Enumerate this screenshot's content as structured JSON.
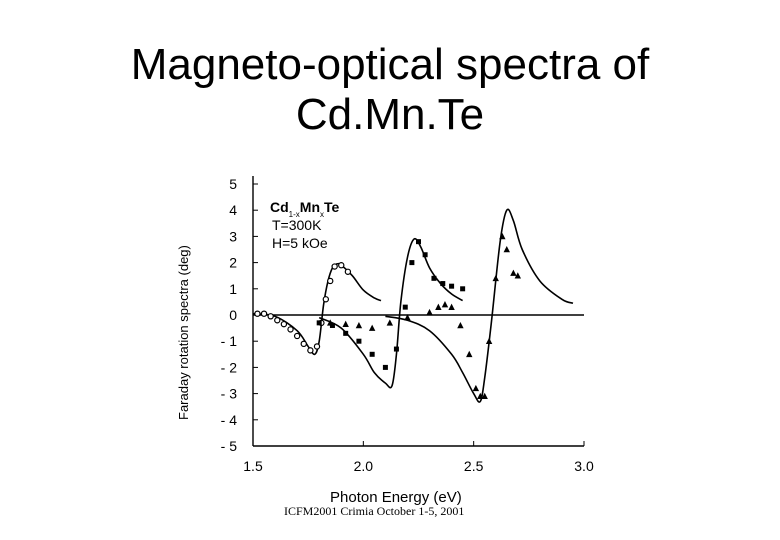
{
  "header": {
    "title_line1": "Magneto-optical spectra of",
    "title_line2": "Cd.Mn.Te"
  },
  "footer": "ICFM2001 Crimia October 1-5, 2001",
  "chart_data": {
    "type": "line",
    "title": "Magneto-optical spectra of Cd.Mn.Te",
    "xlabel": "Photon Energy (eV)",
    "ylabel": "Faraday rotation spectra (deg)",
    "xlim": [
      1.5,
      3.0
    ],
    "ylim": [
      -5,
      5
    ],
    "x_ticks": [
      "1.5",
      "2.0",
      "2.5",
      "3.0"
    ],
    "y_ticks": [
      "5",
      "4",
      "3",
      "2",
      "1",
      "0",
      "- 1",
      "- 2",
      "- 3",
      "- 4",
      "- 5"
    ],
    "annotation": {
      "material_main": "Cd",
      "sub1": "1-x",
      "mid": "Mn",
      "sub2": "x",
      "end": "Te",
      "temperature": "T=300K",
      "field": "H=5 kOe"
    },
    "series": [
      {
        "name": "",
        "kind": "line",
        "x": [
          1.5,
          1.6,
          1.7,
          1.75,
          1.78,
          1.8,
          1.82,
          1.84,
          1.86,
          1.88,
          1.9,
          1.95,
          2.0,
          2.05,
          2.08
        ],
        "y": [
          0.05,
          -0.05,
          -0.6,
          -1.2,
          -1.5,
          -1.0,
          0.4,
          1.3,
          1.8,
          1.95,
          1.9,
          1.5,
          0.95,
          0.65,
          0.55
        ]
      },
      {
        "name": "",
        "kind": "line",
        "x": [
          1.8,
          1.9,
          2.0,
          2.05,
          2.1,
          2.13,
          2.15,
          2.17,
          2.2,
          2.23,
          2.26,
          2.3,
          2.35,
          2.4,
          2.45
        ],
        "y": [
          -0.1,
          -0.5,
          -1.5,
          -2.2,
          -2.6,
          -2.7,
          -1.5,
          0.5,
          2.2,
          2.9,
          2.6,
          1.8,
          1.2,
          0.8,
          0.55
        ]
      },
      {
        "name": "",
        "kind": "line",
        "x": [
          2.1,
          2.2,
          2.3,
          2.4,
          2.45,
          2.5,
          2.53,
          2.55,
          2.58,
          2.62,
          2.65,
          2.68,
          2.72,
          2.8,
          2.9,
          2.95
        ],
        "y": [
          -0.05,
          -0.2,
          -0.6,
          -1.5,
          -2.2,
          -3.0,
          -3.3,
          -2.4,
          -0.3,
          2.8,
          4.0,
          3.6,
          2.5,
          1.3,
          0.6,
          0.45
        ]
      },
      {
        "name": "",
        "kind": "line",
        "x": [
          1.5,
          2.0,
          2.5,
          3.0
        ],
        "y": [
          0,
          0,
          0,
          0
        ]
      },
      {
        "name": "",
        "kind": "circles",
        "x": [
          1.52,
          1.55,
          1.58,
          1.61,
          1.64,
          1.67,
          1.7,
          1.73,
          1.76,
          1.79,
          1.81,
          1.83,
          1.85,
          1.87,
          1.9,
          1.93
        ],
        "y": [
          0.05,
          0.05,
          -0.05,
          -0.2,
          -0.35,
          -0.55,
          -0.8,
          -1.1,
          -1.35,
          -1.2,
          -0.3,
          0.6,
          1.3,
          1.85,
          1.9,
          1.65
        ]
      },
      {
        "name": "",
        "kind": "squares",
        "x": [
          1.8,
          1.86,
          1.92,
          1.98,
          2.04,
          2.1,
          2.15,
          2.19,
          2.22,
          2.25,
          2.28,
          2.32,
          2.36,
          2.4,
          2.45
        ],
        "y": [
          -0.3,
          -0.4,
          -0.7,
          -1.0,
          -1.5,
          -2.0,
          -1.3,
          0.3,
          2.0,
          2.8,
          2.3,
          1.4,
          1.2,
          1.1,
          1.0
        ]
      },
      {
        "name": "",
        "kind": "triangles",
        "x": [
          1.85,
          1.92,
          1.98,
          2.04,
          2.12,
          2.2,
          2.3,
          2.34,
          2.37,
          2.4,
          2.44,
          2.48,
          2.51,
          2.53,
          2.55,
          2.57,
          2.6,
          2.63,
          2.65,
          2.68,
          2.7
        ],
        "y": [
          -0.3,
          -0.35,
          -0.4,
          -0.5,
          -0.3,
          -0.1,
          0.1,
          0.3,
          0.4,
          0.3,
          -0.4,
          -1.5,
          -2.8,
          -3.1,
          -3.1,
          -1.0,
          1.4,
          3.0,
          2.5,
          1.6,
          1.5
        ]
      }
    ]
  }
}
